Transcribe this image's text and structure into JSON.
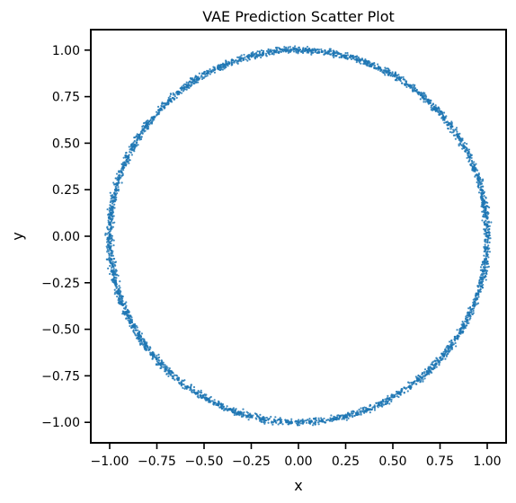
{
  "chart_data": {
    "type": "scatter",
    "title": "VAE Prediction Scatter Plot",
    "xlabel": "x",
    "ylabel": "y",
    "xlim": [
      -1.1,
      1.1
    ],
    "ylim": [
      -1.11,
      1.11
    ],
    "xticks": [
      -1.0,
      -0.75,
      -0.5,
      -0.25,
      0.0,
      0.25,
      0.5,
      0.75,
      1.0
    ],
    "xtick_labels": [
      "−1.00",
      "−0.75",
      "−0.50",
      "−0.25",
      "0.00",
      "0.25",
      "0.50",
      "0.75",
      "1.00"
    ],
    "yticks": [
      -1.0,
      -0.75,
      -0.5,
      -0.25,
      0.0,
      0.25,
      0.5,
      0.75,
      1.0
    ],
    "ytick_labels": [
      "−1.00",
      "−0.75",
      "−0.50",
      "−0.25",
      "0.00",
      "0.25",
      "0.50",
      "0.75",
      "1.00"
    ],
    "grid": false,
    "series": [
      {
        "color": "#1f77b4",
        "shape": "circle",
        "center": [
          0.0,
          0.0
        ],
        "radius": 1.0,
        "points": [
          [
            1.0,
            0.0
          ],
          [
            0.998,
            0.063
          ],
          [
            0.992,
            0.125
          ],
          [
            0.982,
            0.187
          ],
          [
            0.969,
            0.249
          ],
          [
            0.951,
            0.309
          ],
          [
            0.93,
            0.368
          ],
          [
            0.905,
            0.426
          ],
          [
            0.876,
            0.482
          ],
          [
            0.844,
            0.536
          ],
          [
            0.809,
            0.588
          ],
          [
            0.771,
            0.637
          ],
          [
            0.729,
            0.685
          ],
          [
            0.685,
            0.729
          ],
          [
            0.637,
            0.771
          ],
          [
            0.588,
            0.809
          ],
          [
            0.536,
            0.844
          ],
          [
            0.482,
            0.876
          ],
          [
            0.426,
            0.905
          ],
          [
            0.368,
            0.93
          ],
          [
            0.309,
            0.951
          ],
          [
            0.249,
            0.969
          ],
          [
            0.187,
            0.982
          ],
          [
            0.125,
            0.992
          ],
          [
            0.063,
            0.998
          ],
          [
            0.0,
            1.0
          ],
          [
            -0.063,
            0.998
          ],
          [
            -0.125,
            0.992
          ],
          [
            -0.187,
            0.982
          ],
          [
            -0.249,
            0.969
          ],
          [
            -0.309,
            0.951
          ],
          [
            -0.368,
            0.93
          ],
          [
            -0.426,
            0.905
          ],
          [
            -0.482,
            0.876
          ],
          [
            -0.536,
            0.844
          ],
          [
            -0.588,
            0.809
          ],
          [
            -0.637,
            0.771
          ],
          [
            -0.685,
            0.729
          ],
          [
            -0.729,
            0.685
          ],
          [
            -0.771,
            0.637
          ],
          [
            -0.809,
            0.588
          ],
          [
            -0.844,
            0.536
          ],
          [
            -0.876,
            0.482
          ],
          [
            -0.905,
            0.426
          ],
          [
            -0.93,
            0.368
          ],
          [
            -0.951,
            0.309
          ],
          [
            -0.969,
            0.249
          ],
          [
            -0.982,
            0.187
          ],
          [
            -0.992,
            0.125
          ],
          [
            -0.998,
            0.063
          ],
          [
            -1.0,
            0.0
          ],
          [
            -0.998,
            -0.063
          ],
          [
            -0.992,
            -0.125
          ],
          [
            -0.982,
            -0.187
          ],
          [
            -0.969,
            -0.249
          ],
          [
            -0.951,
            -0.309
          ],
          [
            -0.93,
            -0.368
          ],
          [
            -0.905,
            -0.426
          ],
          [
            -0.876,
            -0.482
          ],
          [
            -0.844,
            -0.536
          ],
          [
            -0.809,
            -0.588
          ],
          [
            -0.771,
            -0.637
          ],
          [
            -0.729,
            -0.685
          ],
          [
            -0.685,
            -0.729
          ],
          [
            -0.637,
            -0.771
          ],
          [
            -0.588,
            -0.809
          ],
          [
            -0.536,
            -0.844
          ],
          [
            -0.482,
            -0.876
          ],
          [
            -0.426,
            -0.905
          ],
          [
            -0.368,
            -0.93
          ],
          [
            -0.309,
            -0.951
          ],
          [
            -0.249,
            -0.969
          ],
          [
            -0.187,
            -0.982
          ],
          [
            -0.125,
            -0.992
          ],
          [
            -0.063,
            -0.998
          ],
          [
            0.0,
            -1.0
          ],
          [
            0.063,
            -0.998
          ],
          [
            0.125,
            -0.992
          ],
          [
            0.187,
            -0.982
          ],
          [
            0.249,
            -0.969
          ],
          [
            0.309,
            -0.951
          ],
          [
            0.368,
            -0.93
          ],
          [
            0.426,
            -0.905
          ],
          [
            0.482,
            -0.876
          ],
          [
            0.536,
            -0.844
          ],
          [
            0.588,
            -0.809
          ],
          [
            0.637,
            -0.771
          ],
          [
            0.685,
            -0.729
          ],
          [
            0.729,
            -0.685
          ],
          [
            0.771,
            -0.637
          ],
          [
            0.809,
            -0.588
          ],
          [
            0.844,
            -0.536
          ],
          [
            0.876,
            -0.482
          ],
          [
            0.905,
            -0.426
          ],
          [
            0.93,
            -0.368
          ],
          [
            0.951,
            -0.309
          ],
          [
            0.969,
            -0.249
          ],
          [
            0.982,
            -0.187
          ],
          [
            0.992,
            -0.125
          ],
          [
            0.998,
            -0.063
          ]
        ]
      }
    ]
  }
}
